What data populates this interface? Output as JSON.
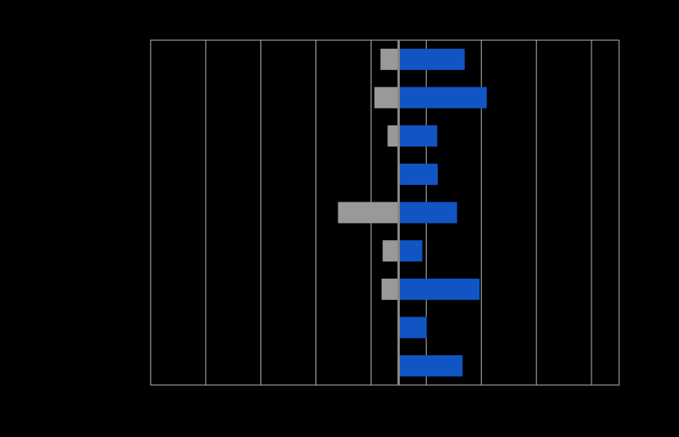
{
  "chart_data": {
    "type": "diverging-bar",
    "categories": [
      null,
      null,
      null,
      null,
      null,
      null,
      null,
      null,
      null
    ],
    "series": [
      {
        "color": "#999999",
        "values": [
          -3.3,
          -4.4,
          -2,
          null,
          -11,
          -2.9,
          -3.1,
          null,
          null
        ]
      },
      {
        "color": "#1155c4",
        "values": [
          12,
          16,
          7,
          7.1,
          10.6,
          4.3,
          14.7,
          5.1,
          11.6
        ]
      }
    ],
    "xlim": [
      -45,
      40
    ],
    "xticks": [
      -45,
      -35,
      -25,
      -15,
      -5,
      5,
      15,
      25,
      35
    ],
    "grid": true
  }
}
